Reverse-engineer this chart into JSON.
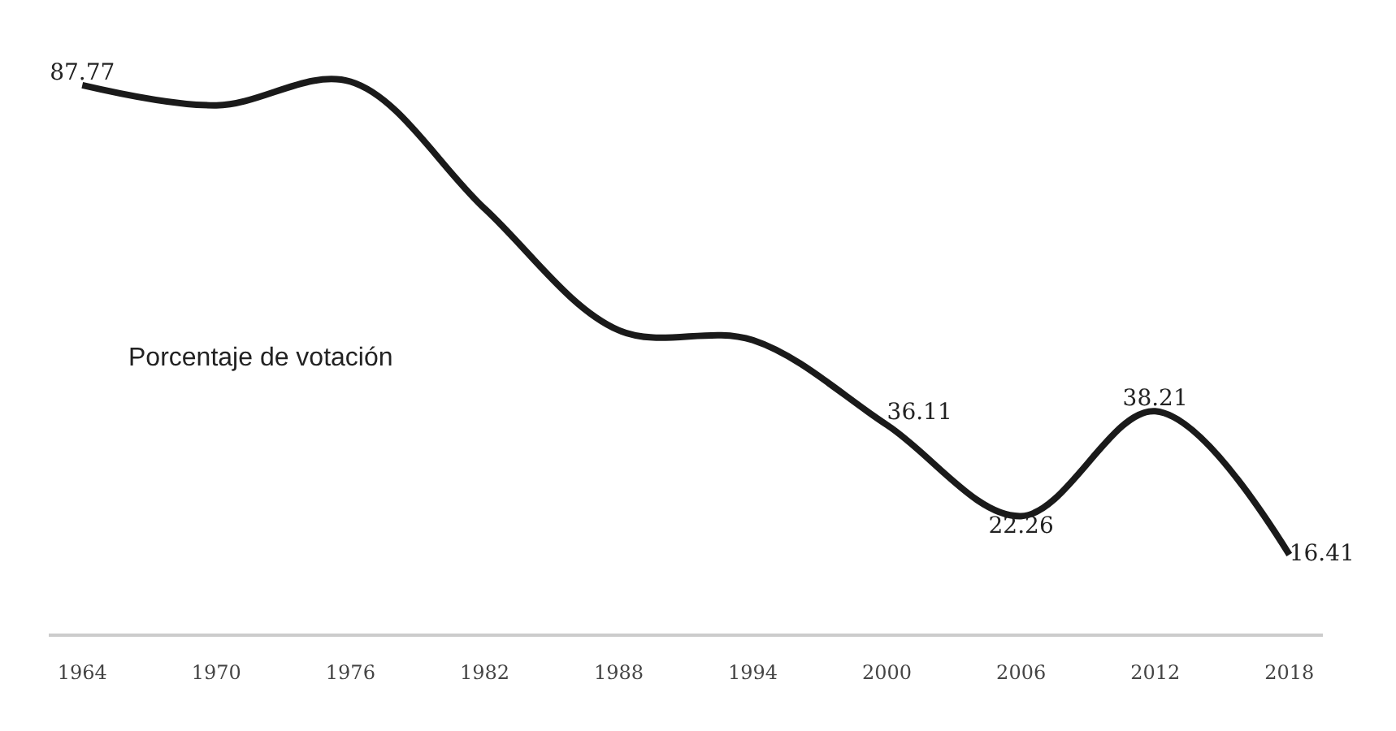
{
  "chart_data": {
    "type": "line",
    "categories": [
      "1964",
      "1970",
      "1976",
      "1982",
      "1988",
      "1994",
      "2000",
      "2006",
      "2012",
      "2018"
    ],
    "values": [
      87.77,
      84.7,
      88.3,
      69.0,
      50.5,
      49.0,
      36.11,
      22.26,
      38.21,
      16.41
    ],
    "value_labels": [
      "87.77",
      null,
      null,
      null,
      null,
      null,
      "36.11",
      "22.26",
      "38.21",
      "16.41"
    ],
    "color": "#1a1a1a",
    "tick_labels": "x",
    "marker": "none",
    "line_style": "solid",
    "annotations": [
      "Porcentaje de votación"
    ]
  }
}
